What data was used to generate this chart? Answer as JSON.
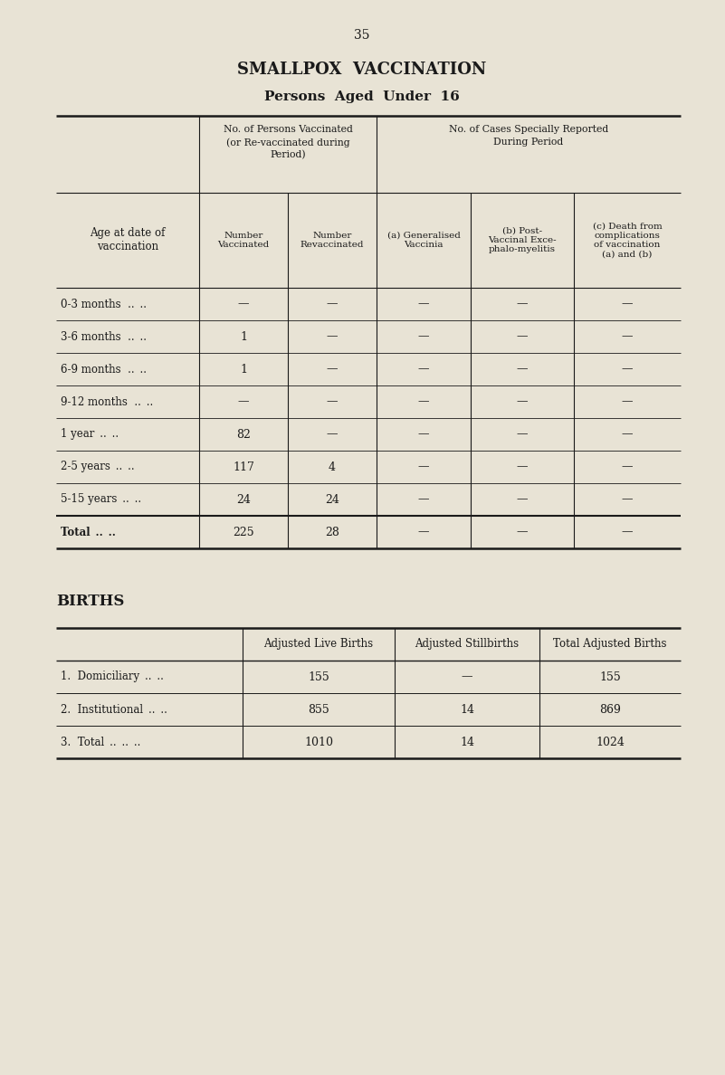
{
  "page_number": "35",
  "title": "SMALLPOX  VACCINATION",
  "subtitle": "Persons  Aged  Under  16",
  "bg_color": "#e8e3d5",
  "text_color": "#1a1a1a",
  "table1": {
    "header_row2_cols": [
      "Number\nVaccinated",
      "Number\nRevaccinated",
      "(a) Generalised\nVaccinia",
      "(b) Post-\nVaccinal Exce-\nphalo-myelitis",
      "(c) Death from\ncomplications\nof vaccination\n(a) and (b)"
    ],
    "rows": [
      [
        "0-3 months  ..    ..",
        "—",
        "—",
        "—",
        "—",
        "—"
      ],
      [
        "3-6 months  ..    ..",
        "1",
        "—",
        "—",
        "—",
        "—"
      ],
      [
        "6-9 months  ..    ..",
        "1",
        "—",
        "—",
        "—",
        "—"
      ],
      [
        "9-12 months  ..    ..",
        "—",
        "—",
        "—",
        "—",
        "—"
      ],
      [
        "1 year    ..    ..",
        "82",
        "—",
        "—",
        "—",
        "—"
      ],
      [
        "2-5 years    ..    ..",
        "117",
        "4",
        "—",
        "—",
        "—"
      ],
      [
        "5-15 years    ..    ..",
        "24",
        "24",
        "—",
        "—",
        "—"
      ],
      [
        "TOTAL    ..    ..",
        "225",
        "28",
        "—",
        "—",
        "—"
      ]
    ],
    "total_row_index": 7
  },
  "births_title": "BIRTHS",
  "table2": {
    "headers": [
      "",
      "Adjusted Live Births",
      "Adjusted Stillbirths",
      "Total Adjusted Births"
    ],
    "rows": [
      [
        "1.  Domiciliary    ..    ..",
        "155",
        "—",
        "155"
      ],
      [
        "2.  Institutional    ..    ..",
        "855",
        "14",
        "869"
      ],
      [
        "3.  Total    ..    ..",
        "1010",
        "14",
        "1024"
      ]
    ]
  }
}
